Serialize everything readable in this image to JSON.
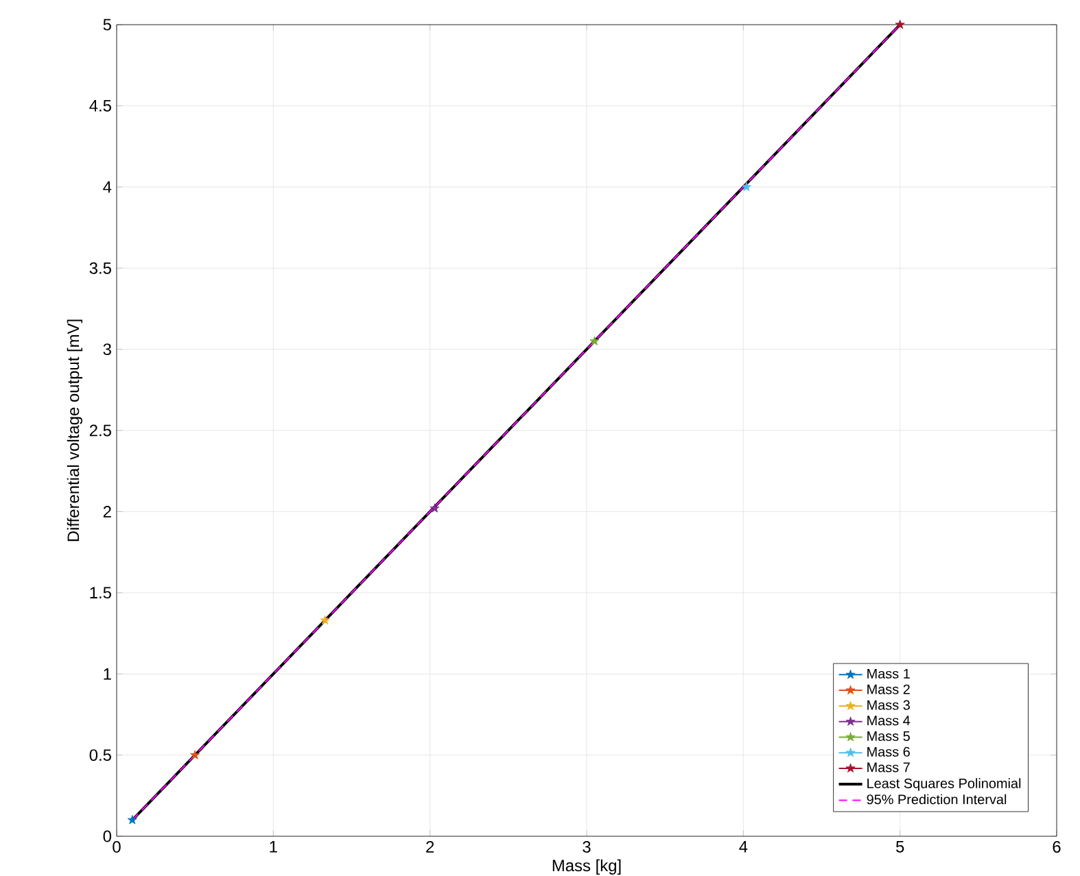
{
  "chart_data": {
    "type": "line",
    "xlabel": "Mass [kg]",
    "ylabel": "Differential voltage output [mV]",
    "xlim": [
      0,
      6
    ],
    "xticks": [
      0,
      1,
      2,
      3,
      4,
      5,
      6
    ],
    "ylim": [
      0,
      5
    ],
    "yticks": [
      0,
      0.5,
      1,
      1.5,
      2,
      2.5,
      3,
      3.5,
      4,
      4.5,
      5
    ],
    "grid": true,
    "legend": "bottom right",
    "series": [
      {
        "name": "Mass 1",
        "color": "#0072bd",
        "x": [
          0.1
        ],
        "values": [
          0.1
        ],
        "marker": "star"
      },
      {
        "name": "Mass 2",
        "color": "#d95319",
        "x": [
          0.5
        ],
        "values": [
          0.5
        ],
        "marker": "star"
      },
      {
        "name": "Mass 3",
        "color": "#edb120",
        "x": [
          1.33
        ],
        "values": [
          1.33
        ],
        "marker": "star"
      },
      {
        "name": "Mass 4",
        "color": "#7e2f8e",
        "x": [
          2.03
        ],
        "values": [
          2.02
        ],
        "marker": "star"
      },
      {
        "name": "Mass 5",
        "color": "#77ac30",
        "x": [
          3.05
        ],
        "values": [
          3.05
        ],
        "marker": "star"
      },
      {
        "name": "Mass 6",
        "color": "#4dbeee",
        "x": [
          4.02
        ],
        "values": [
          4.0
        ],
        "marker": "star"
      },
      {
        "name": "Mass 7",
        "color": "#a2142f",
        "x": [
          5.0
        ],
        "values": [
          5.0
        ],
        "marker": "star"
      },
      {
        "name": "Least Squares Polinomial",
        "color": "#000000",
        "x": [
          0.1,
          5.0
        ],
        "values": [
          0.1,
          5.0
        ],
        "marker": "none",
        "line_style": "solid"
      },
      {
        "name": "95% Prediction Interval",
        "color": "#ff00ff",
        "x": [
          0.1,
          5.0
        ],
        "values": [
          0.1,
          5.0
        ],
        "marker": "none",
        "line_style": "dashed"
      }
    ]
  }
}
